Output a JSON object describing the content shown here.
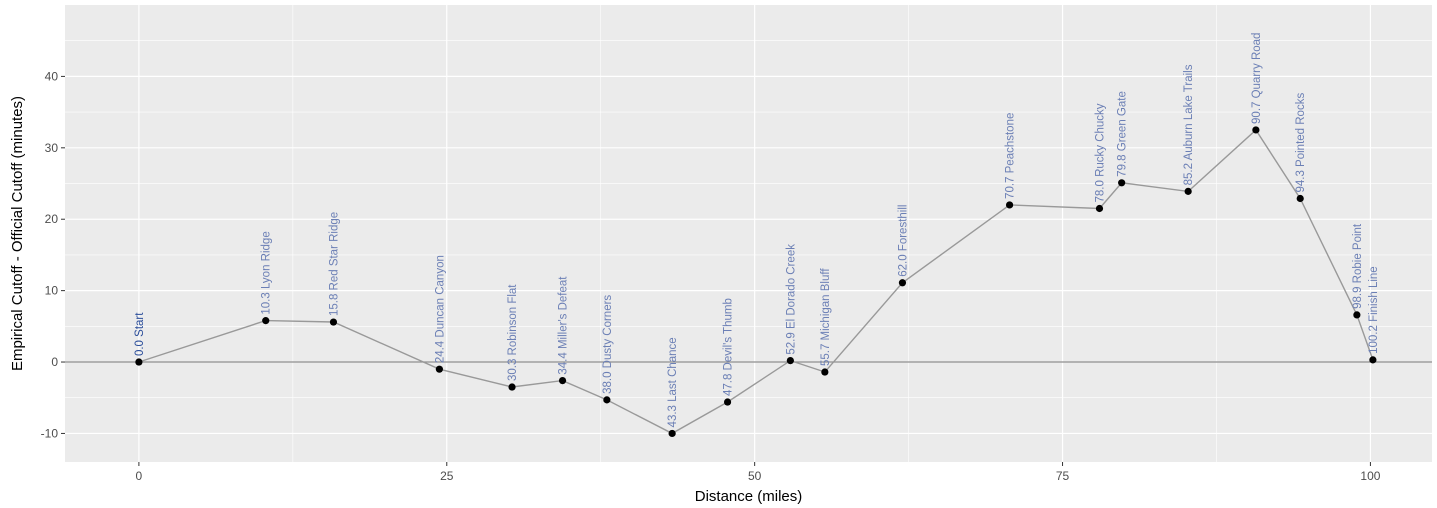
{
  "chart_data": {
    "type": "line",
    "title": "",
    "xlabel": "Distance (miles)",
    "ylabel": "Empirical Cutoff - Official Cutoff (minutes)",
    "xlim": [
      -6,
      105
    ],
    "ylim": [
      -14,
      50
    ],
    "x_ticks": [
      0,
      25,
      50,
      75,
      100
    ],
    "y_ticks": [
      -10,
      0,
      10,
      20,
      30,
      40
    ],
    "grid": true,
    "reference_line": 0,
    "colors": {
      "panel": "#ebebeb",
      "grid": "#ffffff",
      "line": "#999999",
      "point": "#000000",
      "label": "#6b7fb5",
      "label_start": "#2a4d9a"
    },
    "series": [
      {
        "points": [
          {
            "x": 0.0,
            "y": 0.0,
            "label": "0.0 Start"
          },
          {
            "x": 10.3,
            "y": 5.8,
            "label": "10.3 Lyon Ridge"
          },
          {
            "x": 15.8,
            "y": 5.6,
            "label": "15.8 Red Star Ridge"
          },
          {
            "x": 24.4,
            "y": -1.0,
            "label": "24.4 Duncan Canyon"
          },
          {
            "x": 30.3,
            "y": -3.5,
            "label": "30.3 Robinson Flat"
          },
          {
            "x": 34.4,
            "y": -2.6,
            "label": "34.4 Miller's Defeat"
          },
          {
            "x": 38.0,
            "y": -5.3,
            "label": "38.0 Dusty Corners"
          },
          {
            "x": 43.3,
            "y": -10.0,
            "label": "43.3 Last Chance"
          },
          {
            "x": 47.8,
            "y": -5.6,
            "label": "47.8 Devil's Thumb"
          },
          {
            "x": 52.9,
            "y": 0.2,
            "label": "52.9 El Dorado Creek"
          },
          {
            "x": 55.7,
            "y": -1.4,
            "label": "55.7 Michigan Bluff"
          },
          {
            "x": 62.0,
            "y": 11.1,
            "label": "62.0 Foresthill"
          },
          {
            "x": 70.7,
            "y": 22.0,
            "label": "70.7 Peachstone"
          },
          {
            "x": 78.0,
            "y": 21.5,
            "label": "78.0 Rucky Chucky"
          },
          {
            "x": 79.8,
            "y": 25.1,
            "label": "79.8 Green Gate"
          },
          {
            "x": 85.2,
            "y": 23.9,
            "label": "85.2 Auburn Lake Trails"
          },
          {
            "x": 90.7,
            "y": 32.5,
            "label": "90.7 Quarry Road"
          },
          {
            "x": 94.3,
            "y": 22.9,
            "label": "94.3 Pointed Rocks"
          },
          {
            "x": 98.9,
            "y": 6.6,
            "label": "98.9 Robie Point"
          },
          {
            "x": 100.2,
            "y": 0.3,
            "label": "100.2 Finish Line"
          }
        ]
      }
    ]
  }
}
